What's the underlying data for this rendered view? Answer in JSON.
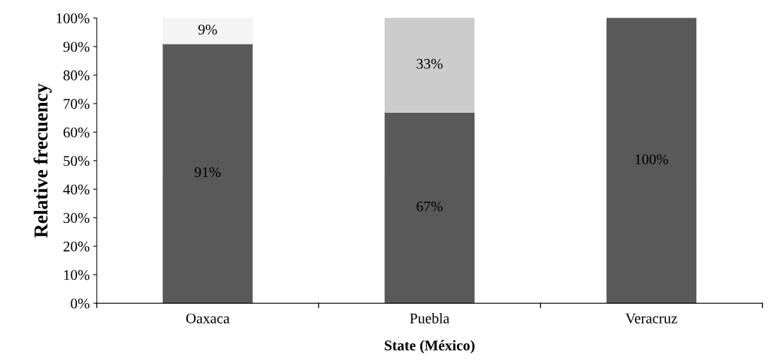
{
  "chart_data": {
    "type": "bar",
    "stacked": true,
    "xlabel": "State (México)",
    "ylabel": "Relative frecuency",
    "categories": [
      "Oaxaca",
      "Puebla",
      "Veracruz"
    ],
    "series": [
      {
        "color": "#595959",
        "values": [
          91,
          67,
          100
        ],
        "value_labels": [
          "91%",
          "67%",
          "100%"
        ]
      },
      {
        "color": "#cccccc",
        "values": [
          null,
          33,
          null
        ],
        "value_labels": [
          null,
          "33%",
          null
        ]
      },
      {
        "color": "#f4f4f4",
        "values": [
          9,
          null,
          null
        ],
        "value_labels": [
          "9%",
          null,
          null
        ]
      }
    ],
    "ylim": [
      0,
      100
    ],
    "yticks": [
      {
        "value": 0,
        "label": "0%"
      },
      {
        "value": 10,
        "label": "10%"
      },
      {
        "value": 20,
        "label": "20%"
      },
      {
        "value": 30,
        "label": "30%"
      },
      {
        "value": 40,
        "label": "40%"
      },
      {
        "value": 50,
        "label": "50%"
      },
      {
        "value": 60,
        "label": "60%"
      },
      {
        "value": 70,
        "label": "70%"
      },
      {
        "value": 80,
        "label": "80%"
      },
      {
        "value": 90,
        "label": "90%"
      },
      {
        "value": 100,
        "label": "100%"
      }
    ],
    "grid": false,
    "legend": false
  }
}
